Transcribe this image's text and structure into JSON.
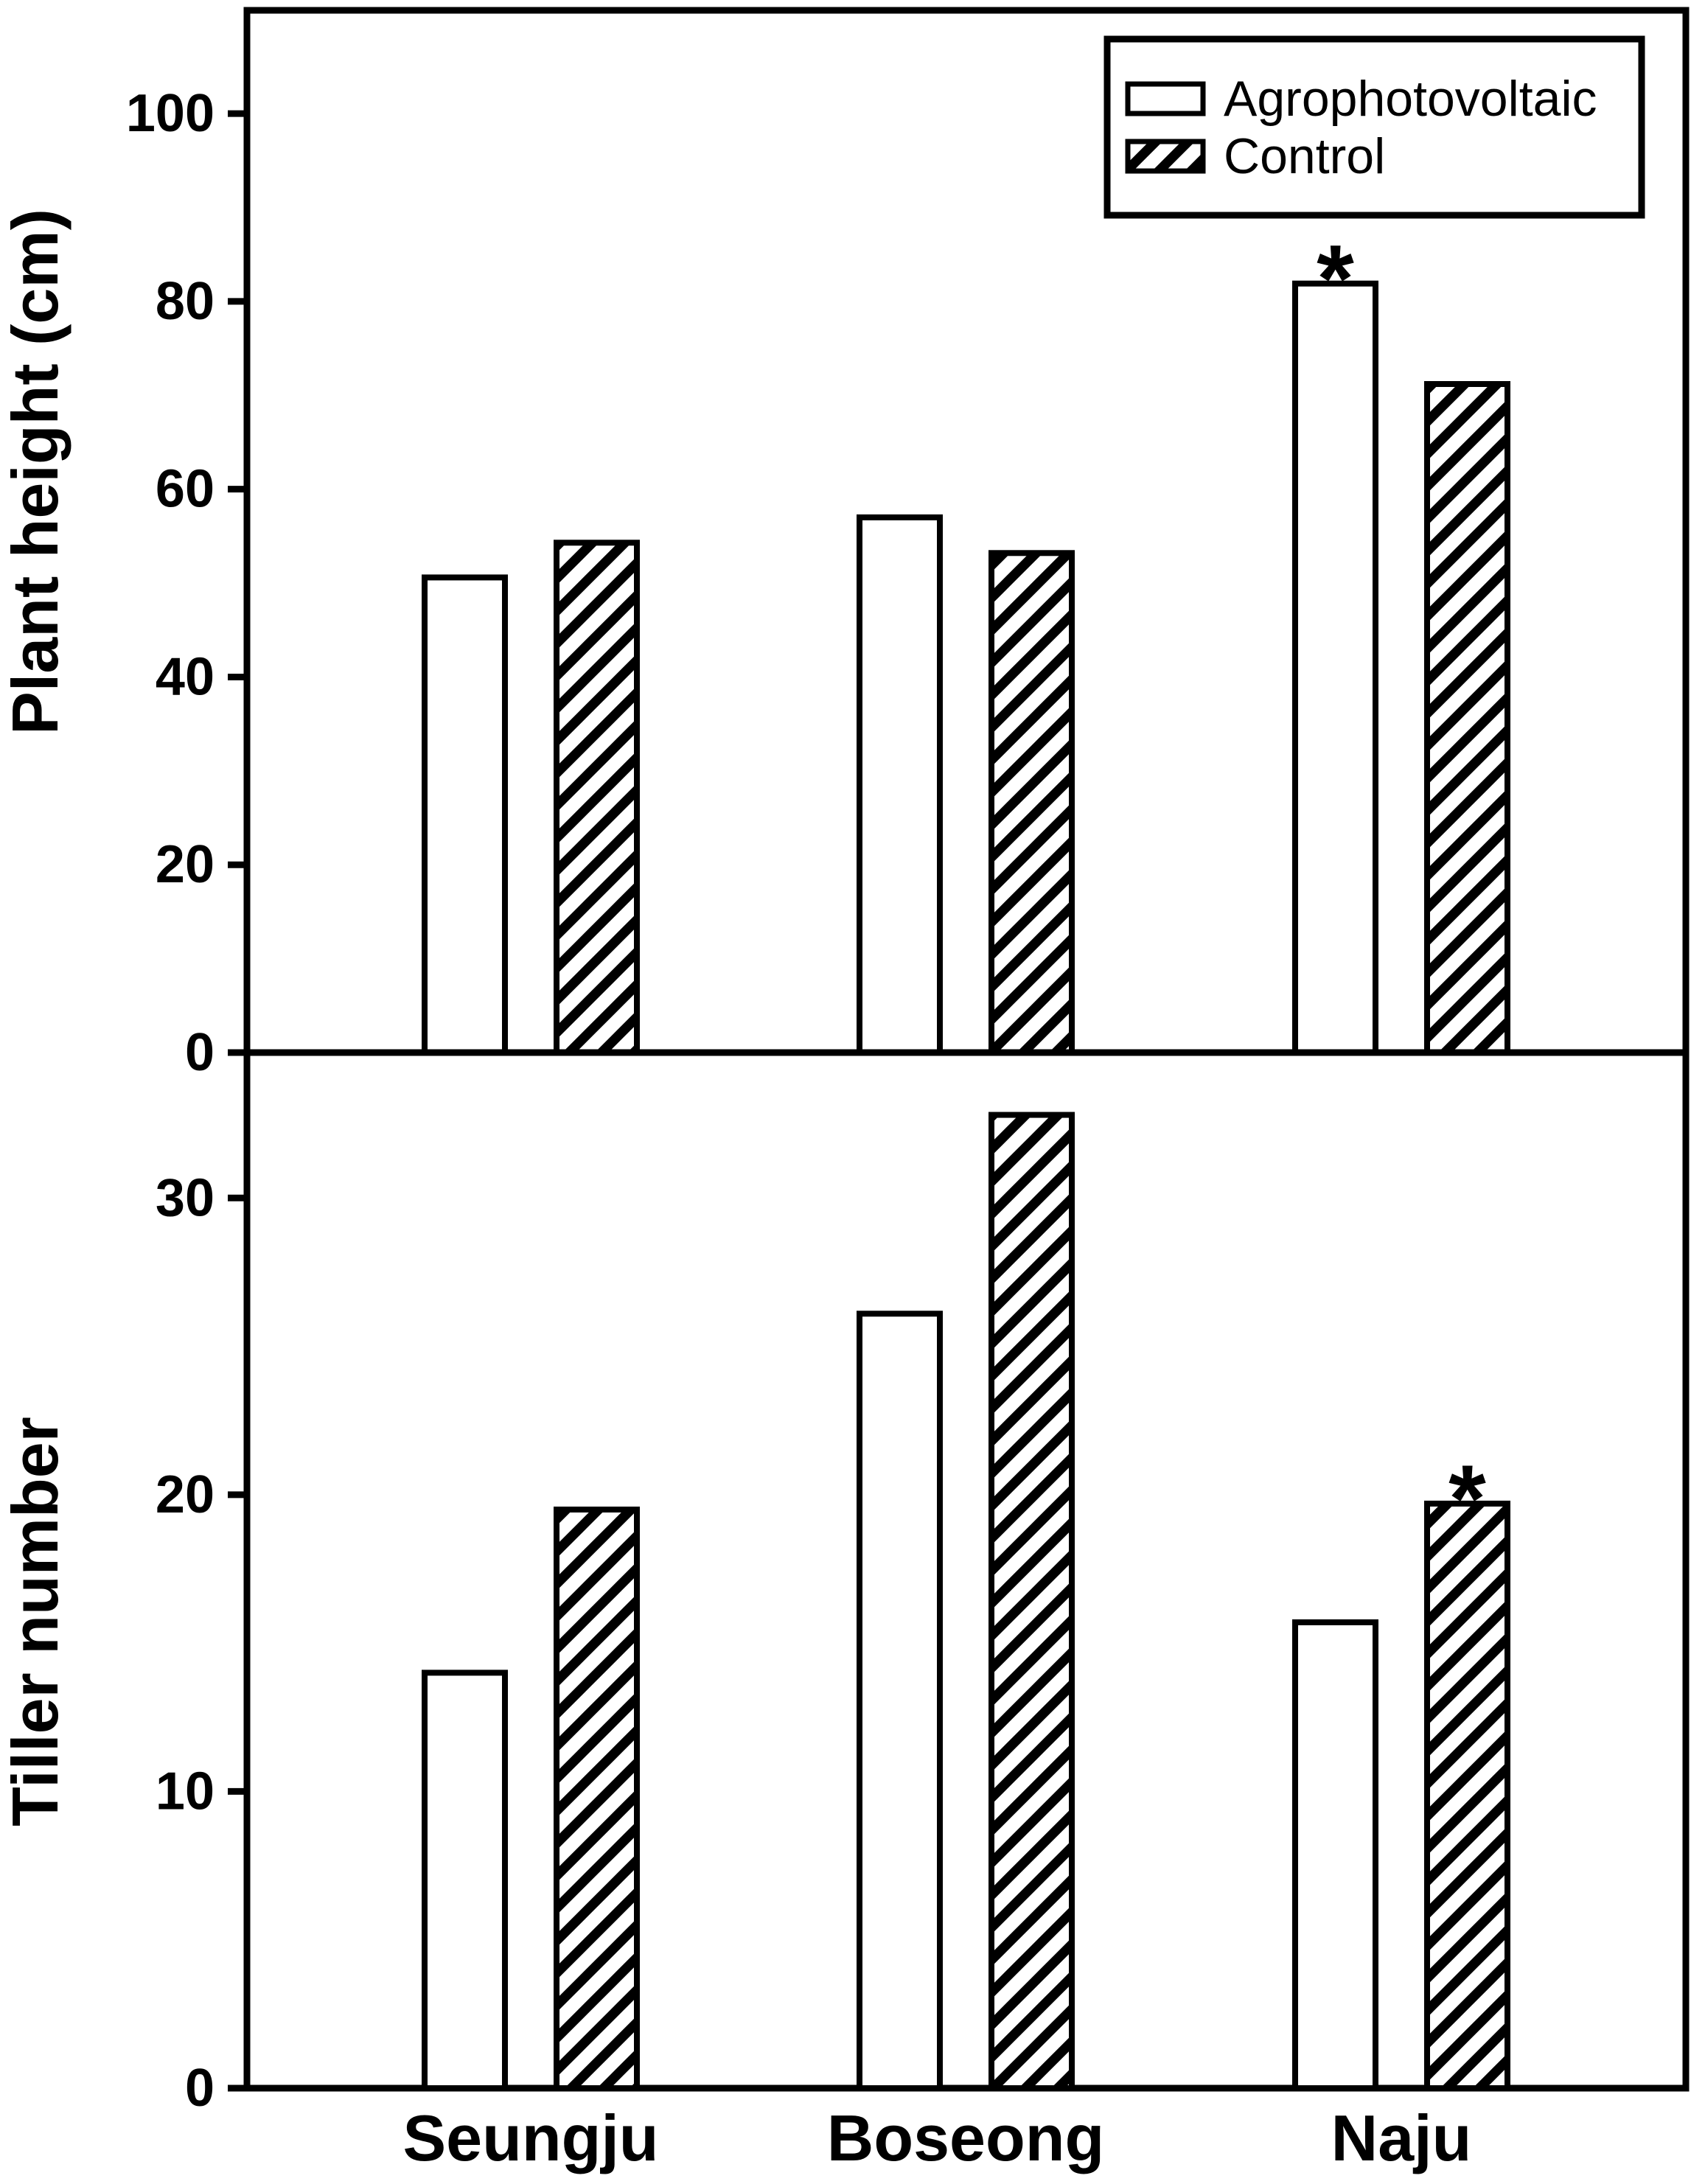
{
  "figure": {
    "background": "#ffffff",
    "ink": "#000000",
    "significance_marker": "*"
  },
  "legend": {
    "position": "top-right",
    "items": [
      {
        "label": "Agrophotovoltaic",
        "swatch": "white-bar-swatch"
      },
      {
        "label": "Control",
        "swatch": "hatched-bar-swatch"
      }
    ]
  },
  "x_axis": {
    "categories": [
      "Seungju",
      "Boseong",
      "Naju"
    ]
  },
  "chart_data": [
    {
      "type": "bar",
      "panel": "top",
      "ylabel": "Plant height (cm)",
      "categories": [
        "Seungju",
        "Boseong",
        "Naju"
      ],
      "series": [
        {
          "name": "Agrophotovoltaic",
          "fill": "white",
          "values": [
            50.6,
            57.0,
            81.9
          ],
          "significance": [
            "",
            "",
            "*"
          ]
        },
        {
          "name": "Control",
          "fill": "hatch",
          "values": [
            54.3,
            53.2,
            71.2
          ],
          "significance": [
            "",
            "",
            ""
          ]
        }
      ],
      "yticks": [
        0,
        20,
        40,
        60,
        80,
        100
      ],
      "ylim": [
        0,
        111
      ],
      "grid": false,
      "legend_position": "top-right"
    },
    {
      "type": "bar",
      "panel": "bottom",
      "ylabel": "Tiller number",
      "categories": [
        "Seungju",
        "Boseong",
        "Naju"
      ],
      "series": [
        {
          "name": "Agrophotovoltaic",
          "fill": "white",
          "values": [
            14.0,
            26.1,
            15.7
          ],
          "significance": [
            "",
            "",
            ""
          ]
        },
        {
          "name": "Control",
          "fill": "hatch",
          "values": [
            19.5,
            32.8,
            19.7
          ],
          "significance": [
            "",
            "",
            "*"
          ]
        }
      ],
      "yticks": [
        0,
        10,
        20,
        30
      ],
      "ylim": [
        0,
        34.9
      ],
      "grid": false
    }
  ]
}
